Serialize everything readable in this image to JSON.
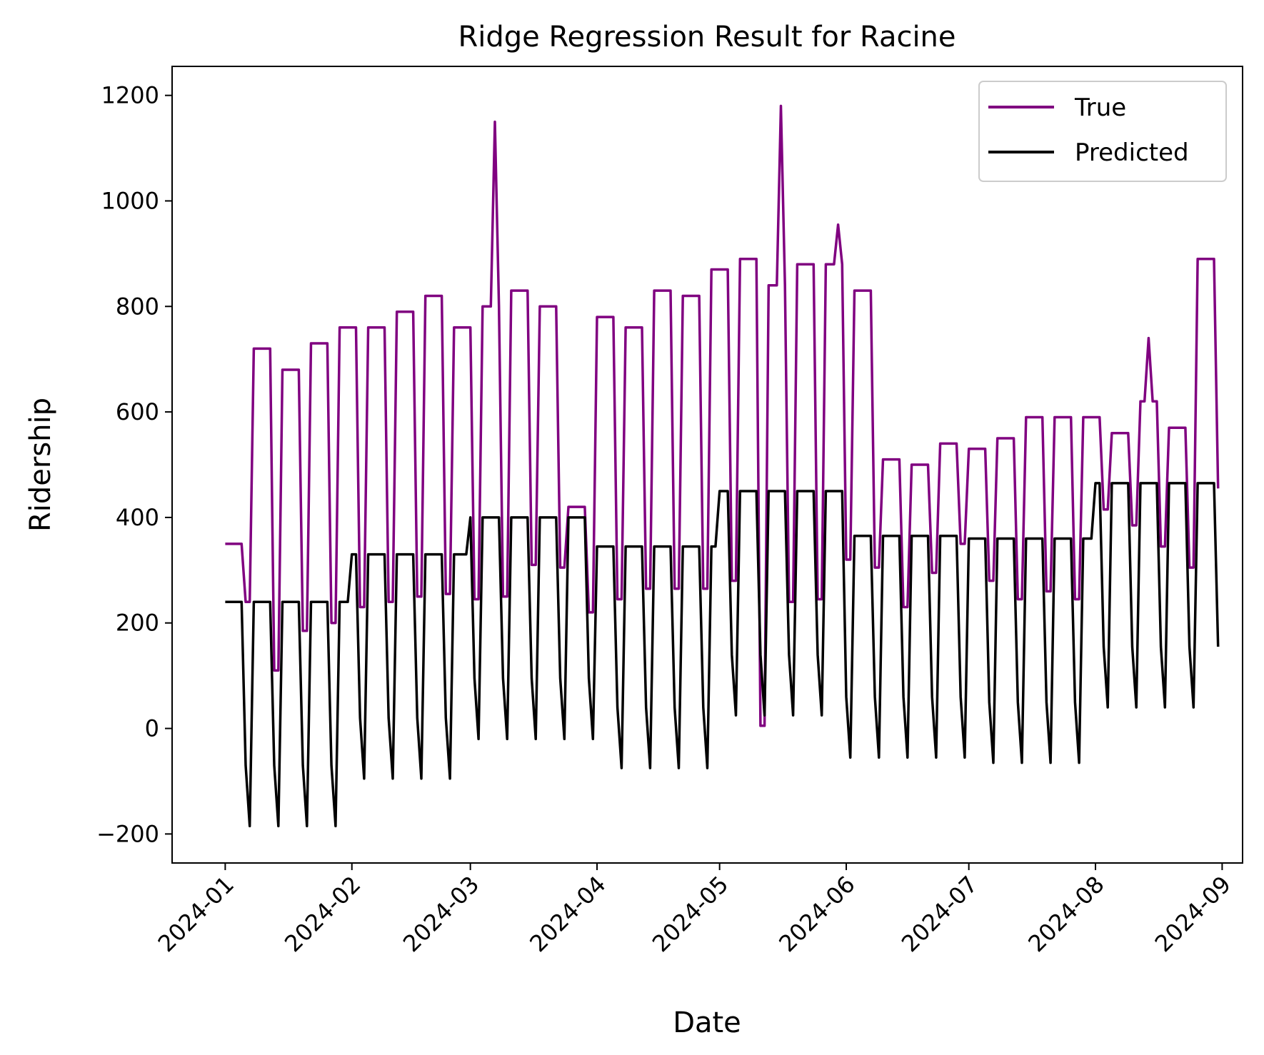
{
  "chart_data": {
    "type": "line",
    "title": "Ridge Regression Result for Racine",
    "xlabel": "Date",
    "ylabel": "Ridership",
    "x_ticks": [
      "2024-01",
      "2024-02",
      "2024-03",
      "2024-04",
      "2024-05",
      "2024-06",
      "2024-07",
      "2024-08",
      "2024-09"
    ],
    "y_ticks": [
      -200,
      0,
      200,
      400,
      600,
      800,
      1000,
      1200
    ],
    "y_tick_labels": [
      "−200",
      "0",
      "200",
      "400",
      "600",
      "800",
      "1000",
      "1200"
    ],
    "xlim": [
      "2023-12-19",
      "2024-09-06"
    ],
    "ylim": [
      -255,
      1255
    ],
    "grid": false,
    "legend_position": "top-right",
    "x_start": "2024-01-01",
    "x_end": "2024-08-31",
    "series": [
      {
        "name": "True",
        "color": "#800080",
        "weekly_pattern": [
          {
            "from": "2024-01-01",
            "weekday": 350,
            "weekend": 240
          },
          {
            "from": "2024-01-08",
            "weekday": 720,
            "weekend": 110
          },
          {
            "from": "2024-01-15",
            "weekday": 680,
            "weekend": 185
          },
          {
            "from": "2024-01-22",
            "weekday": 730,
            "weekend": 200
          },
          {
            "from": "2024-01-29",
            "weekday": 760,
            "weekend": 230
          },
          {
            "from": "2024-02-05",
            "weekday": 760,
            "weekend": 240
          },
          {
            "from": "2024-02-12",
            "weekday": 790,
            "weekend": 250
          },
          {
            "from": "2024-02-19",
            "weekday": 820,
            "weekend": 255
          },
          {
            "from": "2024-02-26",
            "weekday": 760,
            "weekend": 245
          },
          {
            "from": "2024-03-04",
            "weekday": 800,
            "weekend": 250
          },
          {
            "from": "2024-03-11",
            "weekday": 830,
            "weekend": 310
          },
          {
            "from": "2024-03-18",
            "weekday": 800,
            "weekend": 305
          },
          {
            "from": "2024-03-25",
            "weekday": 420,
            "weekend": 220
          },
          {
            "from": "2024-04-01",
            "weekday": 780,
            "weekend": 245
          },
          {
            "from": "2024-04-08",
            "weekday": 760,
            "weekend": 265
          },
          {
            "from": "2024-04-15",
            "weekday": 830,
            "weekend": 265
          },
          {
            "from": "2024-04-22",
            "weekday": 820,
            "weekend": 265
          },
          {
            "from": "2024-04-29",
            "weekday": 870,
            "weekend": 280
          },
          {
            "from": "2024-05-06",
            "weekday": 890,
            "weekend": 5
          },
          {
            "from": "2024-05-13",
            "weekday": 840,
            "weekend": 240
          },
          {
            "from": "2024-05-20",
            "weekday": 880,
            "weekend": 245
          },
          {
            "from": "2024-05-27",
            "weekday": 880,
            "weekend": 320
          },
          {
            "from": "2024-06-03",
            "weekday": 830,
            "weekend": 305
          },
          {
            "from": "2024-06-10",
            "weekday": 510,
            "weekend": 230
          },
          {
            "from": "2024-06-17",
            "weekday": 500,
            "weekend": 295
          },
          {
            "from": "2024-06-24",
            "weekday": 540,
            "weekend": 350
          },
          {
            "from": "2024-07-01",
            "weekday": 530,
            "weekend": 280
          },
          {
            "from": "2024-07-08",
            "weekday": 550,
            "weekend": 245
          },
          {
            "from": "2024-07-15",
            "weekday": 590,
            "weekend": 260
          },
          {
            "from": "2024-07-22",
            "weekday": 590,
            "weekend": 245
          },
          {
            "from": "2024-07-29",
            "weekday": 590,
            "weekend": 415
          },
          {
            "from": "2024-08-05",
            "weekday": 560,
            "weekend": 385
          },
          {
            "from": "2024-08-12",
            "weekday": 620,
            "weekend": 345
          },
          {
            "from": "2024-08-19",
            "weekday": 570,
            "weekend": 305
          },
          {
            "from": "2024-08-26",
            "weekday": 890,
            "weekend": 455
          }
        ],
        "peaks": [
          {
            "date": "2024-03-07",
            "value": 1150
          },
          {
            "date": "2024-05-16",
            "value": 1180
          },
          {
            "date": "2024-05-30",
            "value": 955
          },
          {
            "date": "2024-08-14",
            "value": 740
          }
        ]
      },
      {
        "name": "Predicted",
        "color": "#000000",
        "weekly_pattern": [
          {
            "from": "2024-01-01",
            "weekday": 240,
            "saturday": -70,
            "sunday": -185
          },
          {
            "from": "2024-02-01",
            "weekday": 330,
            "saturday": 20,
            "sunday": -95
          },
          {
            "from": "2024-03-01",
            "weekday": 400,
            "saturday": 95,
            "sunday": -20
          },
          {
            "from": "2024-04-01",
            "weekday": 345,
            "saturday": 40,
            "sunday": -75
          },
          {
            "from": "2024-05-01",
            "weekday": 450,
            "saturday": 140,
            "sunday": 25
          },
          {
            "from": "2024-06-01",
            "weekday": 365,
            "saturday": 60,
            "sunday": -55
          },
          {
            "from": "2024-07-01",
            "weekday": 360,
            "saturday": 50,
            "sunday": -65
          },
          {
            "from": "2024-08-01",
            "weekday": 465,
            "saturday": 155,
            "sunday": 40
          }
        ]
      }
    ]
  }
}
